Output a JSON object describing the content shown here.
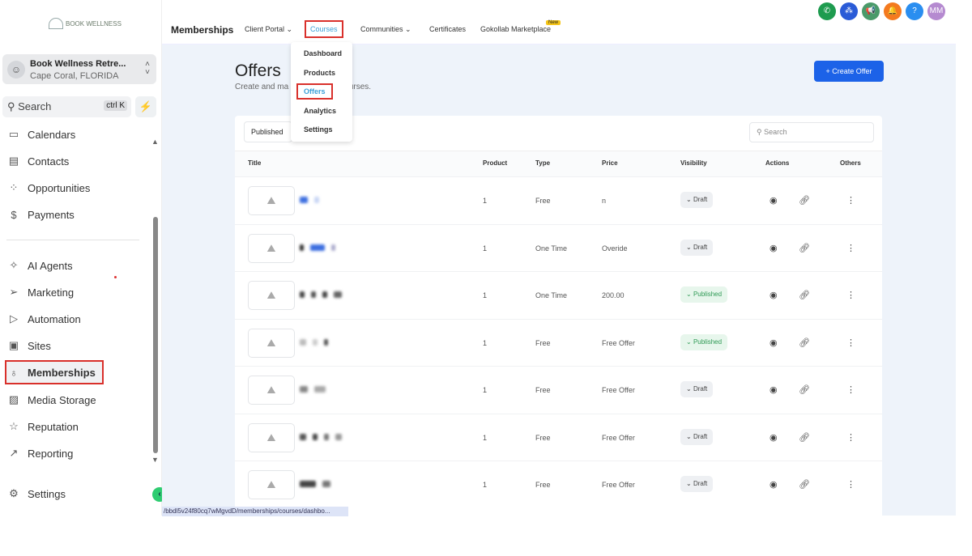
{
  "brand": {
    "logo_text": "BOOK WELLNESS"
  },
  "location": {
    "name": "Book Wellness Retre...",
    "sub": "Cape Coral, FLORIDA"
  },
  "sidebar": {
    "search": "Search",
    "shortcut": "ctrl K",
    "items": [
      {
        "label": "Calendars",
        "icon": "calendar-icon"
      },
      {
        "label": "Contacts",
        "icon": "contacts-icon"
      },
      {
        "label": "Opportunities",
        "icon": "opportunities-icon"
      },
      {
        "label": "Payments",
        "icon": "payments-icon"
      },
      {
        "label": "AI Agents",
        "icon": "sparkle-icon"
      },
      {
        "label": "Marketing",
        "icon": "send-icon"
      },
      {
        "label": "Automation",
        "icon": "automation-icon"
      },
      {
        "label": "Sites",
        "icon": "sites-icon"
      },
      {
        "label": "Memberships",
        "icon": "award-icon",
        "active": true
      },
      {
        "label": "Media Storage",
        "icon": "image-icon"
      },
      {
        "label": "Reputation",
        "icon": "star-icon"
      },
      {
        "label": "Reporting",
        "icon": "trend-icon"
      }
    ],
    "settings": "Settings"
  },
  "topnav": {
    "title": "Memberships",
    "items": [
      "Client Portal",
      "Courses",
      "Communities",
      "Certificates",
      "Gokollab Marketplace"
    ],
    "new_badge": "New",
    "avatar": "MM"
  },
  "dropdown": [
    "Dashboard",
    "Products",
    "Offers",
    "Analytics",
    "Settings"
  ],
  "page": {
    "title": "Offers",
    "subtitle": "Create and ma",
    "subtitle_end": "r courses.",
    "create": "+ Create Offer",
    "tab": "Published",
    "search_placeholder": "Search"
  },
  "table": {
    "headers": [
      "Title",
      "Product",
      "Type",
      "Price",
      "Visibility",
      "Actions",
      "Others"
    ],
    "rows": [
      {
        "product": "1",
        "type": "Free",
        "price": "n",
        "visibility": "Draft"
      },
      {
        "product": "1",
        "type": "One Time",
        "price": "Overide",
        "visibility": "Draft"
      },
      {
        "product": "1",
        "type": "One Time",
        "price": "200.00",
        "visibility": "Published"
      },
      {
        "product": "1",
        "type": "Free",
        "price": "Free Offer",
        "visibility": "Published"
      },
      {
        "product": "1",
        "type": "Free",
        "price": "Free Offer",
        "visibility": "Draft"
      },
      {
        "product": "1",
        "type": "Free",
        "price": "Free Offer",
        "visibility": "Draft"
      },
      {
        "product": "1",
        "type": "Free",
        "price": "Free Offer",
        "visibility": "Draft"
      }
    ]
  },
  "status_url": "/bbdl5v24f80cq7wMgvdD/memberships/courses/dashbo..."
}
